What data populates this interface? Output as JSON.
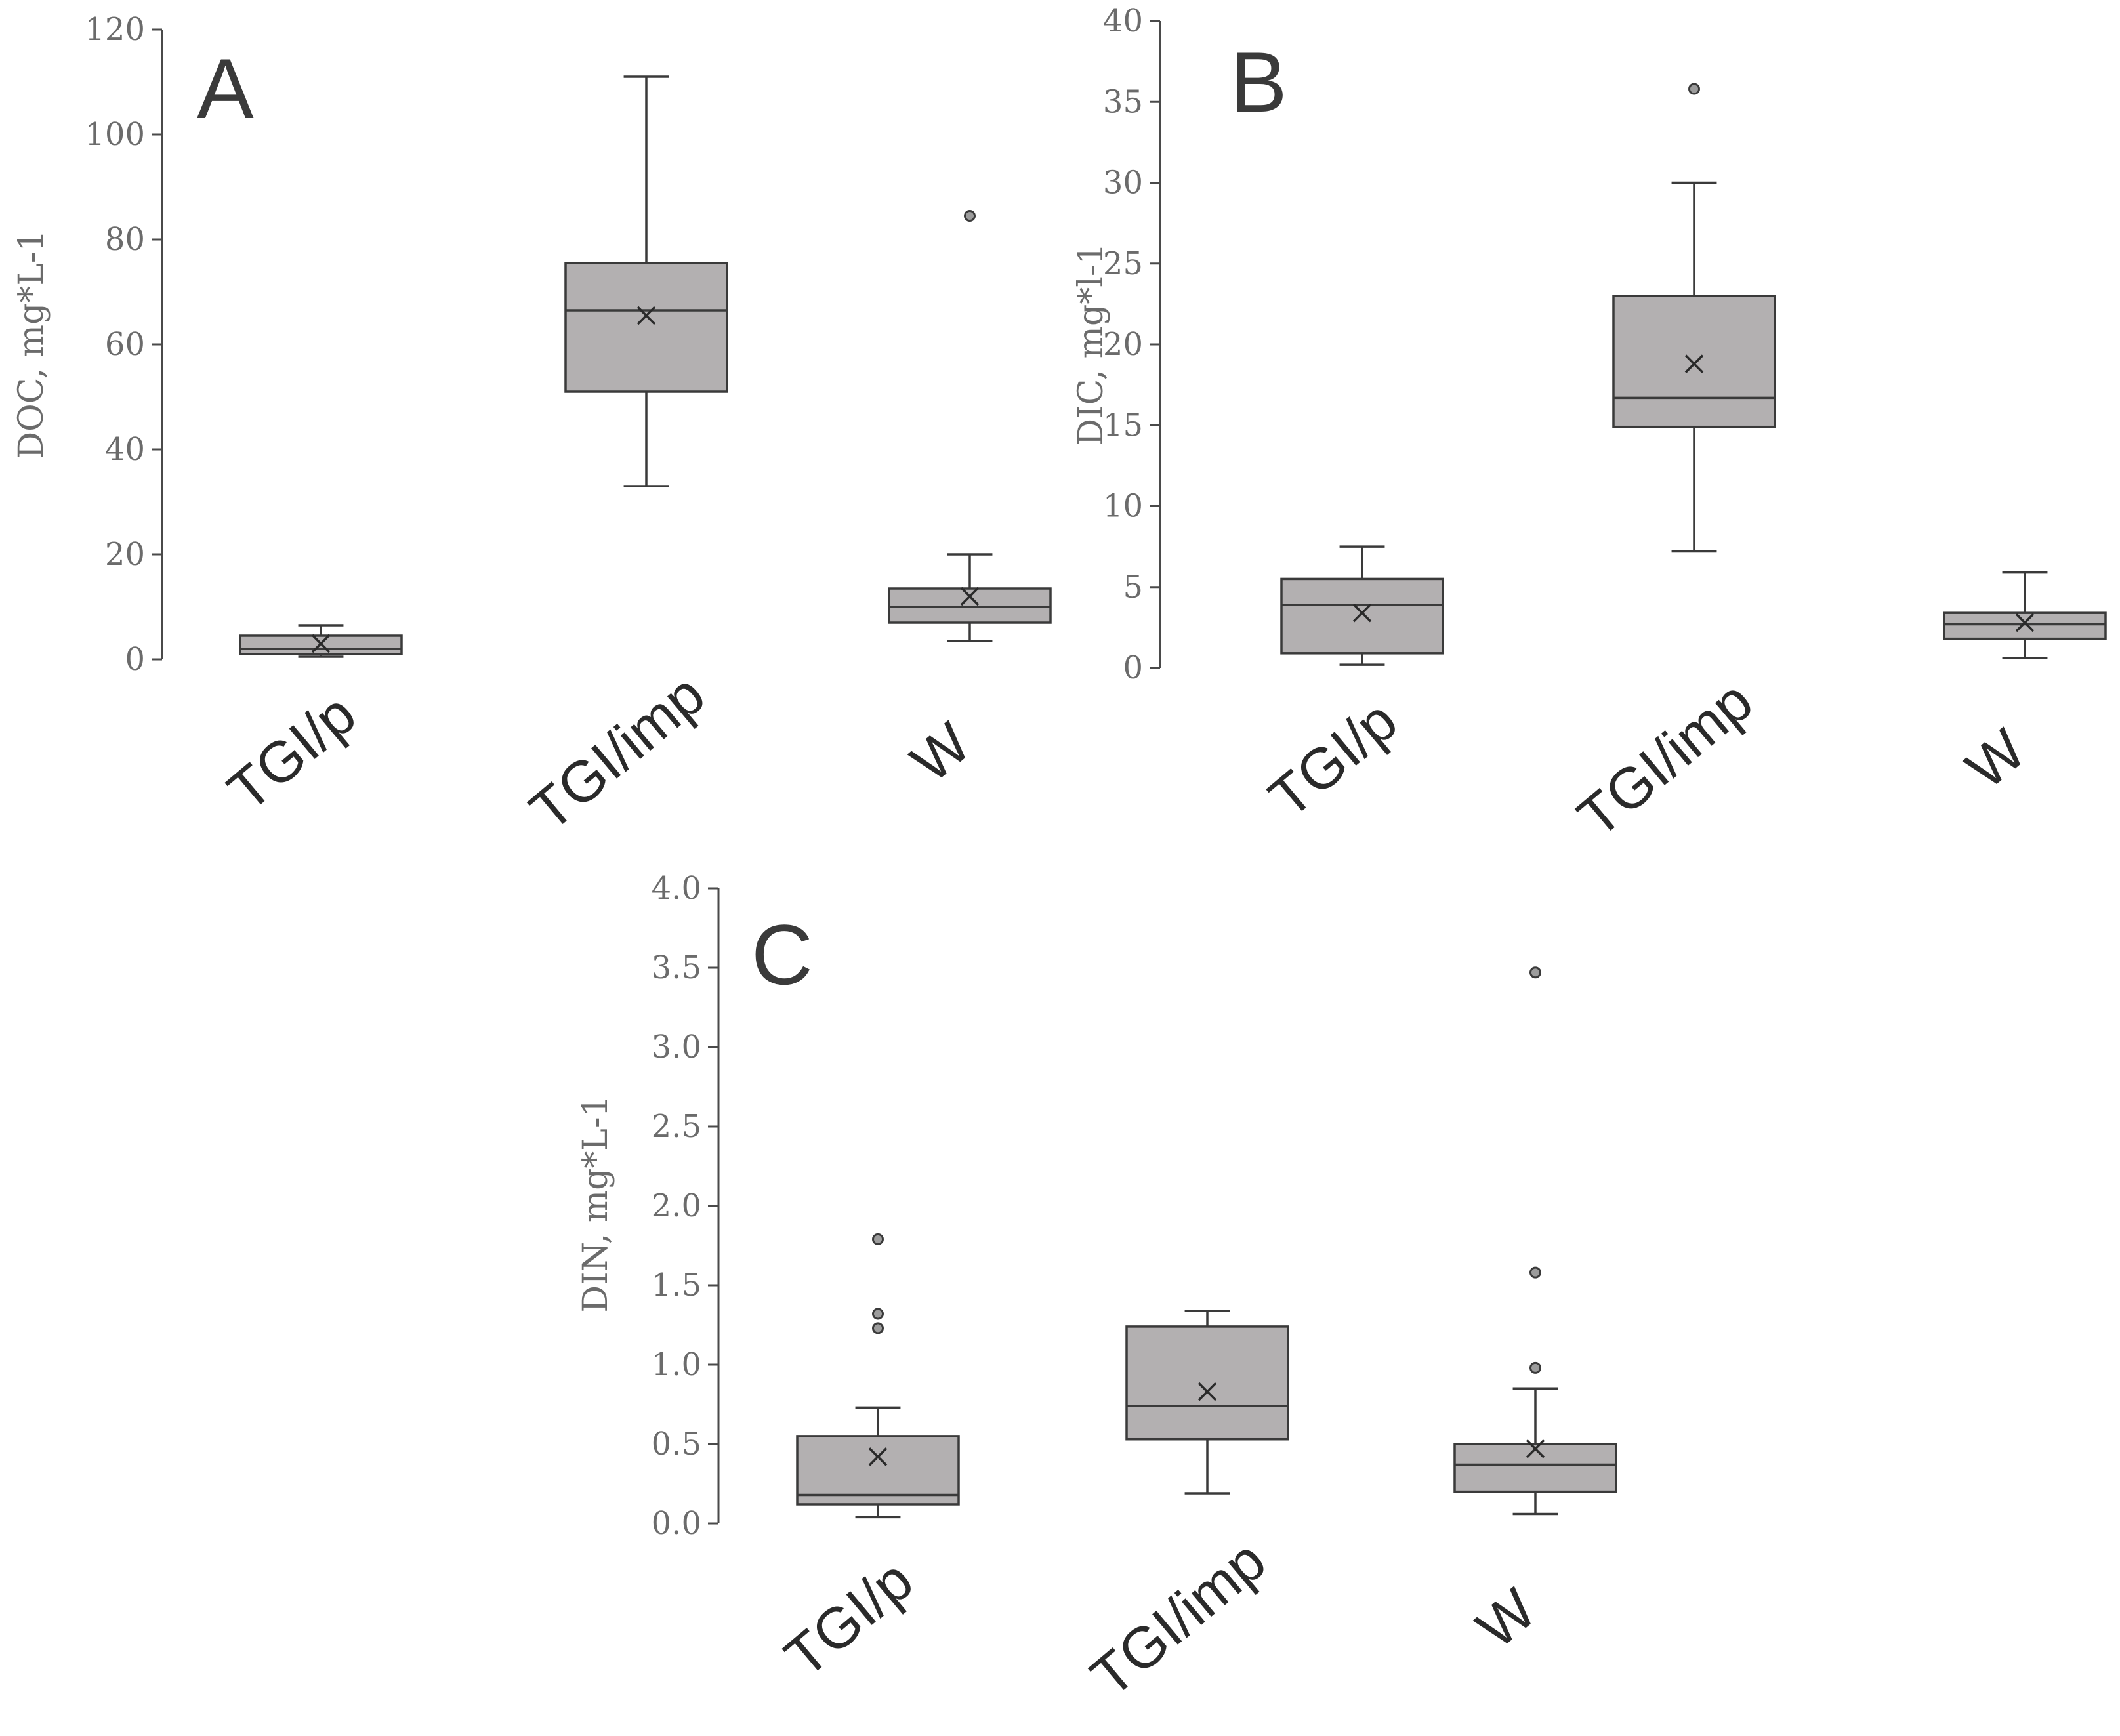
{
  "colors": {
    "box_fill": "#b3b0b1",
    "box_stroke": "#3a3a3a",
    "axis": "#4a4a4a",
    "tick_text": "#6b6b6b",
    "category_text": "#2a2a2a",
    "outlier_fill": "#9c9c9c"
  },
  "chart_data": [
    {
      "type": "box",
      "panel_label": "A",
      "ylabel": "DOC, mg*L-1",
      "ylim": [
        0,
        120
      ],
      "yticks": [
        0,
        20,
        40,
        60,
        80,
        100,
        120
      ],
      "categories": [
        "TGI/p",
        "TGI/imp",
        "W"
      ],
      "boxes": [
        {
          "category": "TGI/p",
          "min": 0.5,
          "q1": 1.0,
          "median": 2.0,
          "q3": 4.5,
          "max": 6.5,
          "mean": 3.0,
          "outliers": []
        },
        {
          "category": "TGI/imp",
          "min": 33,
          "q1": 51,
          "median": 66.5,
          "q3": 75.5,
          "max": 111,
          "mean": 65.5,
          "outliers": []
        },
        {
          "category": "W",
          "min": 3.5,
          "q1": 7.0,
          "median": 10.0,
          "q3": 13.5,
          "max": 20,
          "mean": 12.0,
          "outliers": [
            84.5
          ]
        }
      ]
    },
    {
      "type": "box",
      "panel_label": "B",
      "ylabel": "DIC, mg*l-1",
      "ylim": [
        0,
        40
      ],
      "yticks": [
        0,
        5,
        10,
        15,
        20,
        25,
        30,
        35,
        40
      ],
      "categories": [
        "TGI/p",
        "TGI/imp",
        "W"
      ],
      "boxes": [
        {
          "category": "TGI/p",
          "min": 0.2,
          "q1": 0.9,
          "median": 3.9,
          "q3": 5.5,
          "max": 7.5,
          "mean": 3.4,
          "outliers": []
        },
        {
          "category": "TGI/imp",
          "min": 7.2,
          "q1": 14.9,
          "median": 16.7,
          "q3": 23.0,
          "max": 30.0,
          "mean": 18.8,
          "outliers": [
            35.8
          ]
        },
        {
          "category": "W",
          "min": 0.6,
          "q1": 1.8,
          "median": 2.7,
          "q3": 3.4,
          "max": 5.9,
          "mean": 2.8,
          "outliers": []
        }
      ]
    },
    {
      "type": "box",
      "panel_label": "C",
      "ylabel": "DIN, mg*L-1",
      "ylim": [
        0,
        4
      ],
      "yticks": [
        "0.0",
        "0.5",
        "1.0",
        "1.5",
        "2.0",
        "2.5",
        "3.0",
        "3.5",
        "4.0"
      ],
      "categories": [
        "TGI/p",
        "TGI/imp",
        "W"
      ],
      "boxes": [
        {
          "category": "TGI/p",
          "min": 0.04,
          "q1": 0.12,
          "median": 0.18,
          "q3": 0.55,
          "max": 0.73,
          "mean": 0.42,
          "outliers": [
            1.23,
            1.32,
            1.79
          ]
        },
        {
          "category": "TGI/imp",
          "min": 0.19,
          "q1": 0.53,
          "median": 0.74,
          "q3": 1.24,
          "max": 1.34,
          "mean": 0.83,
          "outliers": []
        },
        {
          "category": "W",
          "min": 0.06,
          "q1": 0.2,
          "median": 0.37,
          "q3": 0.5,
          "max": 0.85,
          "mean": 0.47,
          "outliers": [
            0.98,
            1.58,
            3.47
          ]
        }
      ]
    }
  ]
}
